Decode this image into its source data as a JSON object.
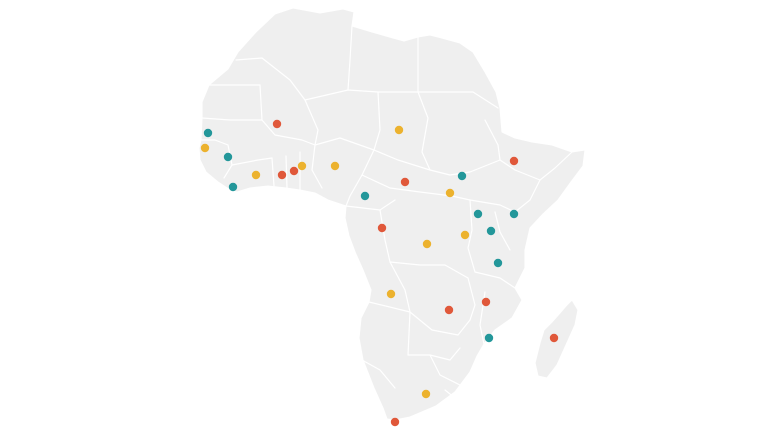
{
  "map": {
    "region": "Africa",
    "colors": {
      "background": "#ffffff",
      "land": "#efefef",
      "borders": "#ffffff"
    },
    "marker_categories": [
      {
        "id": "red",
        "color": "#e0583a"
      },
      {
        "id": "yellow",
        "color": "#ecb22e"
      },
      {
        "id": "teal",
        "color": "#23979a"
      }
    ],
    "markers": [
      {
        "id": "senegal",
        "category": "teal"
      },
      {
        "id": "gambia",
        "category": "yellow"
      },
      {
        "id": "guinea",
        "category": "teal"
      },
      {
        "id": "liberia",
        "category": "teal"
      },
      {
        "id": "mali",
        "category": "red"
      },
      {
        "id": "cote-divoire",
        "category": "yellow"
      },
      {
        "id": "ghana",
        "category": "red"
      },
      {
        "id": "togo",
        "category": "red"
      },
      {
        "id": "benin",
        "category": "yellow"
      },
      {
        "id": "nigeria",
        "category": "yellow"
      },
      {
        "id": "chad",
        "category": "yellow"
      },
      {
        "id": "cameroon",
        "category": "teal"
      },
      {
        "id": "car",
        "category": "red"
      },
      {
        "id": "sudan",
        "category": "teal"
      },
      {
        "id": "ethiopia",
        "category": "red"
      },
      {
        "id": "south-sudan",
        "category": "yellow"
      },
      {
        "id": "uganda",
        "category": "teal"
      },
      {
        "id": "kenya",
        "category": "teal"
      },
      {
        "id": "rwanda",
        "category": "teal"
      },
      {
        "id": "burundi",
        "category": "yellow"
      },
      {
        "id": "congo",
        "category": "red"
      },
      {
        "id": "drc",
        "category": "yellow"
      },
      {
        "id": "tanzania",
        "category": "teal"
      },
      {
        "id": "angola",
        "category": "yellow"
      },
      {
        "id": "zambia",
        "category": "red"
      },
      {
        "id": "malawi",
        "category": "red"
      },
      {
        "id": "mozambique",
        "category": "teal"
      },
      {
        "id": "madagascar",
        "category": "red"
      },
      {
        "id": "south-africa",
        "category": "yellow"
      },
      {
        "id": "cape-town",
        "category": "red"
      }
    ]
  }
}
